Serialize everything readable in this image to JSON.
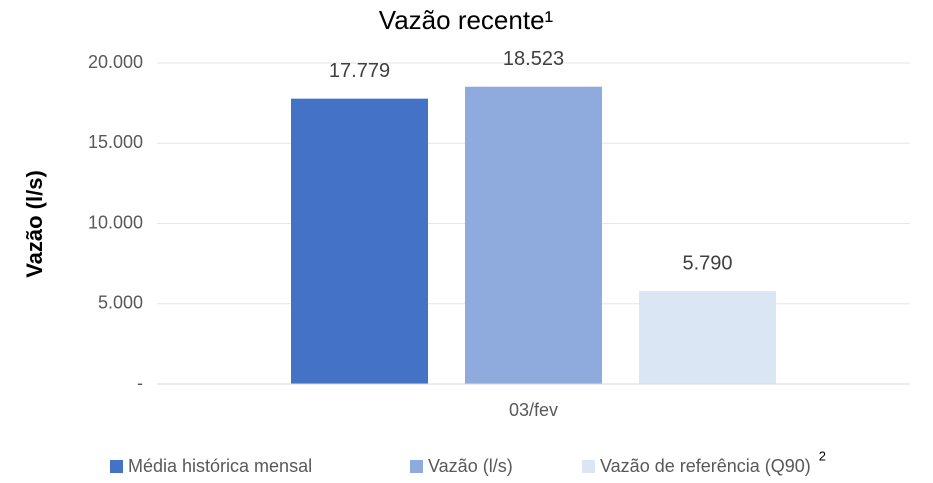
{
  "chart_data": {
    "type": "bar",
    "title": "Vazão recente¹",
    "y_label": "Vazão (l/s)",
    "categories": [
      "03/fev"
    ],
    "series": [
      {
        "name": "Média histórica mensal",
        "color": "#4472c4",
        "values": [
          17779
        ],
        "value_labels": [
          "17.779"
        ]
      },
      {
        "name": "Vazão (l/s)",
        "color": "#8faadc",
        "values": [
          18523
        ],
        "value_labels": [
          "18.523"
        ]
      },
      {
        "name": "Vazão de referência (Q90)",
        "color": "#dae6f4",
        "values": [
          5790
        ],
        "value_labels": [
          "5.790"
        ]
      }
    ],
    "legend_footnote": "2",
    "ylim": [
      0,
      20000
    ],
    "yticks": [
      {
        "value": 0,
        "label": "-"
      },
      {
        "value": 5000,
        "label": "5.000"
      },
      {
        "value": 10000,
        "label": "10.000"
      },
      {
        "value": 15000,
        "label": "15.000"
      },
      {
        "value": 20000,
        "label": "20.000"
      }
    ],
    "grid": true,
    "legend": "bottom"
  }
}
